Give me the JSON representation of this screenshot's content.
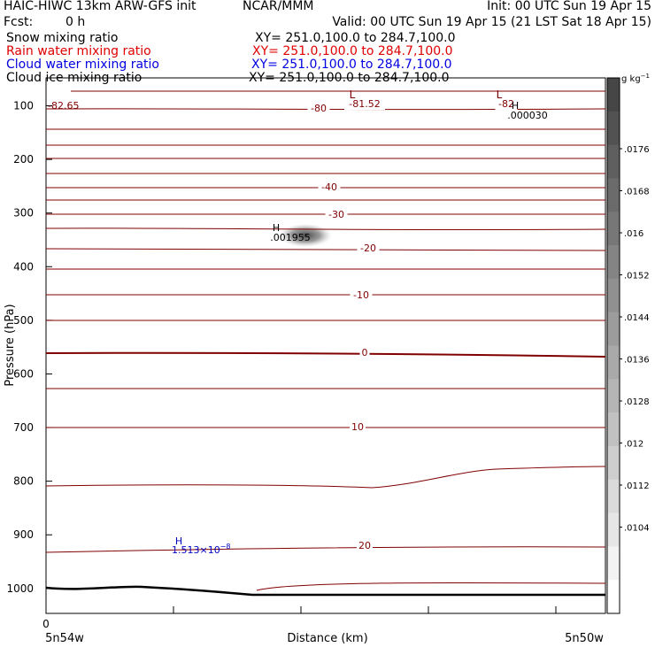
{
  "header": {
    "model": "HAIC-HIWC 13km ARW-GFS init",
    "center": "NCAR/MMM",
    "init": "Init: 00 UTC Sun 19 Apr 15",
    "fcst_label": "Fcst:",
    "fcst_value": "0 h",
    "valid": "Valid: 00 UTC Sun 19 Apr 15 (21 LST Sat 18 Apr 15)"
  },
  "fields": [
    {
      "name": "Snow mixing ratio",
      "xy": "XY= 251.0,100.0 to 284.7,100.0",
      "color": "#000000"
    },
    {
      "name": "Rain water mixing ratio",
      "xy": "XY= 251.0,100.0 to 284.7,100.0",
      "color": "#e00000"
    },
    {
      "name": "Cloud water mixing ratio",
      "xy": "XY= 251.0,100.0 to 284.7,100.0",
      "color": "#0000e0"
    },
    {
      "name": "Cloud ice mixing ratio",
      "xy": "XY= 251.0,100.0 to 284.7,100.0",
      "color": "#000000"
    }
  ],
  "chart_data": {
    "type": "contour",
    "ylabel": "Pressure (hPa)",
    "xlabel": "Distance (km)",
    "y_ticks": [
      100,
      200,
      300,
      400,
      500,
      600,
      700,
      800,
      900,
      1000
    ],
    "ylim": [
      1050,
      60
    ],
    "x_tick_label": "0",
    "x_left_label": "5n54w",
    "x_right_label": "5n50w",
    "temperature_contours": {
      "color": "#800000",
      "labels": [
        "-80",
        "-81.52",
        "-82",
        "-40",
        "-30",
        "-20",
        "-10",
        "0",
        "10",
        "20"
      ],
      "edge_value": "-82.65"
    },
    "shading": {
      "unit": "g kg",
      "unit_exp": "−1",
      "ticks": [
        ".0176",
        ".0168",
        ".016",
        ".0152",
        ".0144",
        ".0136",
        ".0128",
        ".012",
        ".0112",
        ".0104"
      ]
    },
    "annotations": [
      {
        "mark": "L",
        "text": ""
      },
      {
        "mark": "L",
        "text": ""
      },
      {
        "mark": "H",
        "text": ".000030"
      },
      {
        "mark": "H",
        "text": ".001955"
      },
      {
        "mark": "H",
        "text": "1.513×10",
        "exp": "−8"
      }
    ]
  }
}
